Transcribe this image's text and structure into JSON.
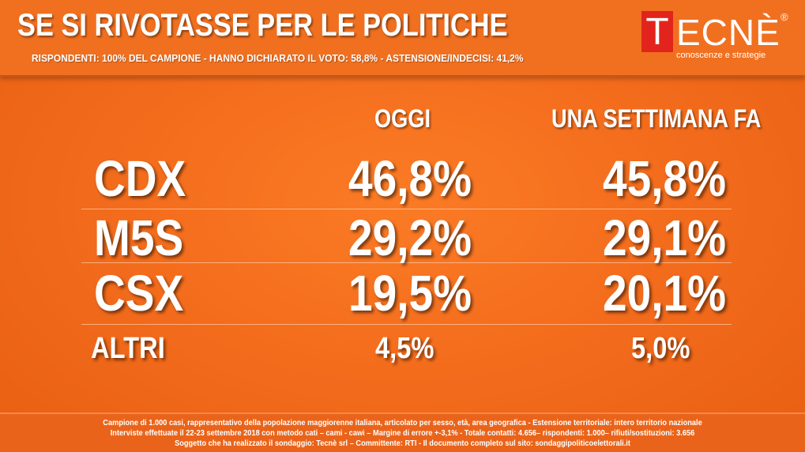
{
  "header": {
    "title": "SE SI RIVOTASSE PER LE POLITICHE",
    "subtitle": "RISPONDENTI: 100% DEL CAMPIONE - HANNO DICHIARATO IL VOTO: 58,8% - ASTENSIONE/INDECISI: 41,2%"
  },
  "logo": {
    "first_letter": "T",
    "rest": "ECNÈ",
    "registered": "®",
    "tagline": "conoscenze e strategie",
    "accent_color": "#e3241c"
  },
  "columns": {
    "today": "OGGI",
    "week_ago": "UNA SETTIMANA FA"
  },
  "rows": [
    {
      "party": "CDX",
      "today": "46,8%",
      "week_ago": "45,8%"
    },
    {
      "party": "M5S",
      "today": "29,2%",
      "week_ago": "29,1%"
    },
    {
      "party": "CSX",
      "today": "19,5%",
      "week_ago": "20,1%"
    },
    {
      "party": "ALTRI",
      "today": "4,5%",
      "week_ago": "5,0%"
    }
  ],
  "footer": {
    "line1": "Campione di  1.000 casi, rappresentativo della popolazione maggiorenne italiana, articolato per sesso, età, area geografica - Estensione territoriale: intero territorio nazionale",
    "line2": "Interviste effettuate il 22-23 settembre 2018 con metodo cati – cami - cawi – Margine di errore +-3,1% - Totale contatti: 4.656– rispondenti: 1.000– rifiuti/sostituzioni: 3.656",
    "line3": "Soggetto che ha realizzato il sondaggio: Tecnè srl – Committente: RTI - Il documento completo sul sito: sondaggipoliticoelettorali.it"
  },
  "colors": {
    "background": "#f26a1b",
    "text": "#ffffff"
  }
}
